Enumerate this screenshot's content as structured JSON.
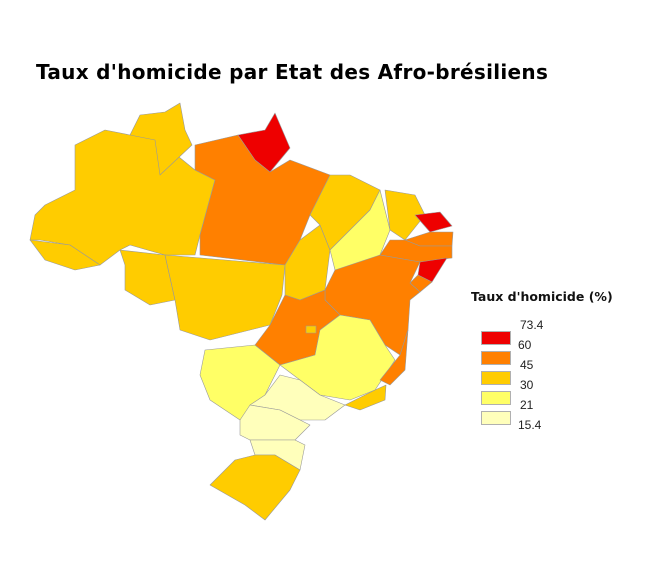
{
  "title": "Taux d'homicide par Etat des Afro-brésiliens",
  "legend": {
    "title": "Taux d'homicide (%)",
    "breaks": [
      "73.4",
      "60",
      "45",
      "30",
      "21",
      "15.4"
    ],
    "classes": [
      {
        "range": "60 – 73.4",
        "color": "#ee0000"
      },
      {
        "range": "45 – 60",
        "color": "#ff8000"
      },
      {
        "range": "30 – 45",
        "color": "#ffcc00"
      },
      {
        "range": "21 – 30",
        "color": "#ffff66"
      },
      {
        "range": "15.4 – 21",
        "color": "#ffffbb"
      }
    ]
  },
  "state_class": {
    "AM": 2,
    "RR": 2,
    "AP": 0,
    "PA": 1,
    "AC": 2,
    "RO": 2,
    "MT": 2,
    "TO": 2,
    "MA": 2,
    "PI": 3,
    "CE": 2,
    "RN": 0,
    "PB": 1,
    "PE": 1,
    "AL": 0,
    "SE": 1,
    "BA": 1,
    "MS": 3,
    "GO": 1,
    "DF": 2,
    "MG": 3,
    "ES": 1,
    "RJ": 2,
    "SP": 4,
    "PR": 4,
    "SC": 4,
    "RS": 2
  }
}
